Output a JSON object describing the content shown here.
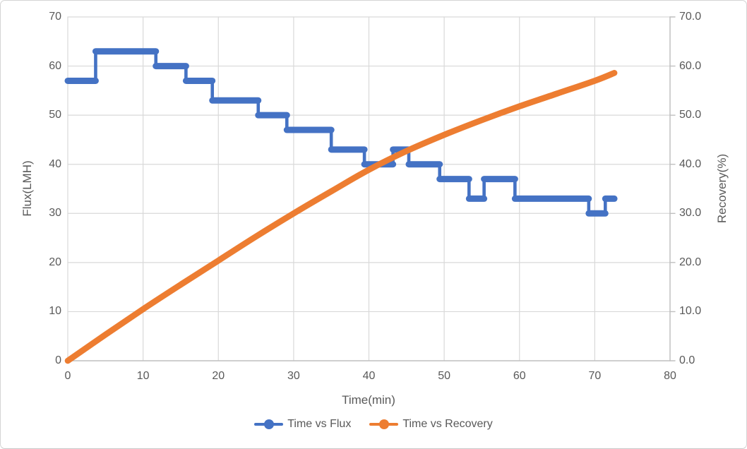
{
  "chart_data": {
    "type": "line",
    "title": "",
    "grid": true,
    "legend_position": "bottom",
    "x_axis": {
      "label": "Time(min)",
      "min": 0,
      "max": 80,
      "ticks": [
        0,
        10,
        20,
        30,
        40,
        50,
        60,
        70,
        80
      ]
    },
    "y_axis_left": {
      "label": "Flux(LMH)",
      "min": 0,
      "max": 70,
      "ticks": [
        0,
        10,
        20,
        30,
        40,
        50,
        60,
        70
      ],
      "tick_labels": [
        "0",
        "10",
        "20",
        "30",
        "40",
        "50",
        "60",
        "70"
      ]
    },
    "y_axis_right": {
      "label": "Recovery(%)",
      "min": 0,
      "max": 70,
      "ticks": [
        0,
        10,
        20,
        30,
        40,
        50,
        60,
        70
      ],
      "tick_labels": [
        "0.0",
        "10.0",
        "20.0",
        "30.0",
        "40.0",
        "50.0",
        "60.0",
        "70.0"
      ]
    },
    "series": [
      {
        "name": "Time vs Flux",
        "color": "#4472C4",
        "axis": "left",
        "style": "step-with-dense-markers",
        "segments": [
          {
            "start": 0,
            "end": 3.7,
            "value": 57
          },
          {
            "start": 3.7,
            "end": 11.7,
            "value": 63
          },
          {
            "start": 11.7,
            "end": 15.7,
            "value": 60
          },
          {
            "start": 15.7,
            "end": 19.2,
            "value": 57
          },
          {
            "start": 19.2,
            "end": 25.3,
            "value": 53
          },
          {
            "start": 25.3,
            "end": 29.1,
            "value": 50
          },
          {
            "start": 29.1,
            "end": 35.0,
            "value": 47
          },
          {
            "start": 35.0,
            "end": 39.4,
            "value": 43
          },
          {
            "start": 39.4,
            "end": 43.2,
            "value": 40
          },
          {
            "start": 43.2,
            "end": 45.3,
            "value": 43
          },
          {
            "start": 45.3,
            "end": 49.4,
            "value": 40
          },
          {
            "start": 49.4,
            "end": 53.3,
            "value": 37
          },
          {
            "start": 53.3,
            "end": 55.3,
            "value": 33
          },
          {
            "start": 55.3,
            "end": 59.4,
            "value": 37
          },
          {
            "start": 59.4,
            "end": 69.2,
            "value": 33
          },
          {
            "start": 69.2,
            "end": 71.4,
            "value": 30
          },
          {
            "start": 71.4,
            "end": 72.6,
            "value": 33
          }
        ]
      },
      {
        "name": "Time vs Recovery",
        "color": "#ED7D31",
        "axis": "right",
        "style": "smooth-with-dense-markers",
        "points": [
          [
            0,
            0
          ],
          [
            5,
            5.3
          ],
          [
            10,
            10.5
          ],
          [
            15,
            15.5
          ],
          [
            20,
            20.4
          ],
          [
            25,
            25.3
          ],
          [
            30,
            30.0
          ],
          [
            35,
            34.5
          ],
          [
            40,
            38.9
          ],
          [
            45,
            42.7
          ],
          [
            50,
            46.0
          ],
          [
            55,
            49.0
          ],
          [
            60,
            51.8
          ],
          [
            65,
            54.4
          ],
          [
            70,
            57.0
          ],
          [
            72.6,
            58.6
          ]
        ]
      }
    ]
  },
  "legend": {
    "items": [
      {
        "label": "Time vs Flux",
        "color": "#4472C4"
      },
      {
        "label": "Time vs Recovery",
        "color": "#ED7D31"
      }
    ]
  },
  "colors": {
    "flux_series": "#4472C4",
    "recovery_series": "#ED7D31",
    "gridline": "#D9D9D9",
    "axis_line": "#BFBFBF",
    "label_text": "#595959",
    "background": "#FFFFFF"
  }
}
